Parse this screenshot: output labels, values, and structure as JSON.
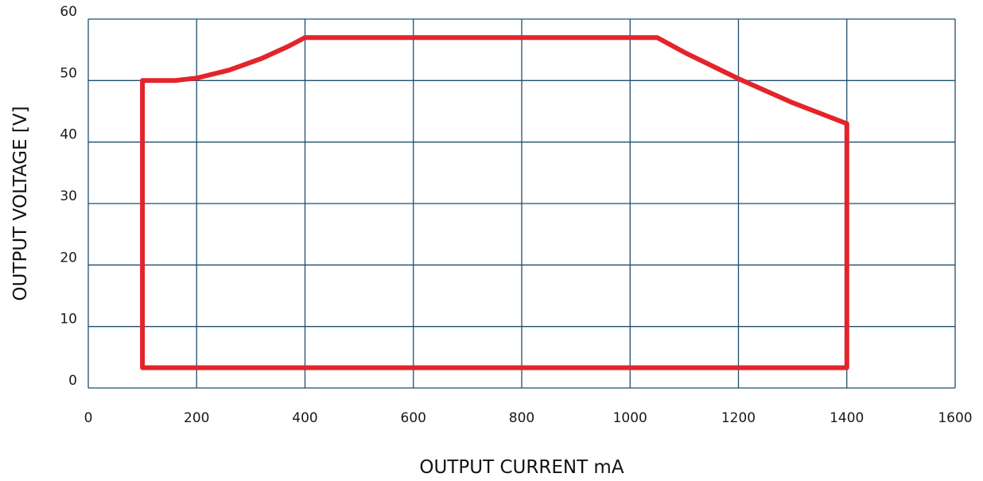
{
  "chart_data": {
    "type": "line",
    "title": "",
    "xlabel": "OUTPUT CURRENT mA",
    "ylabel": "OUTPUT VOLTAGE [V]",
    "xlim": [
      0,
      1600
    ],
    "ylim": [
      0,
      60
    ],
    "x_ticks": [
      0,
      200,
      400,
      600,
      800,
      1000,
      1200,
      1400,
      1600
    ],
    "y_ticks": [
      0,
      10,
      20,
      30,
      40,
      50,
      60
    ],
    "grid": true,
    "legend": "none",
    "colors": {
      "grid": "#1f4f6e",
      "series": "#e3242b"
    },
    "series": [
      {
        "closed": true,
        "x": [
          100,
          160,
          200,
          260,
          320,
          370,
          400,
          1050,
          1100,
          1200,
          1300,
          1400,
          1400,
          100,
          100
        ],
        "y": [
          50,
          50,
          50.4,
          51.7,
          53.6,
          55.6,
          57,
          57,
          54.6,
          50.3,
          46.4,
          43,
          3.3,
          3.3,
          50
        ]
      }
    ]
  }
}
